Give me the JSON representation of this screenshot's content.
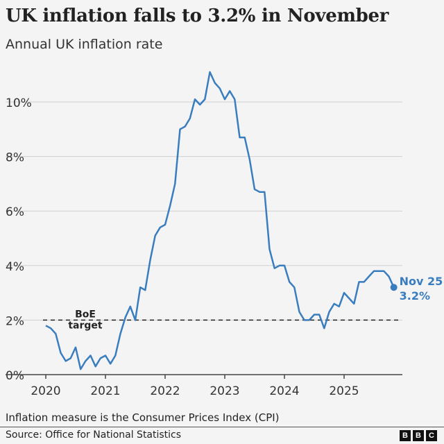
{
  "header": {
    "title": "UK inflation falls to 3.2% in November",
    "subtitle": "Annual UK inflation rate"
  },
  "chart_data": {
    "type": "line",
    "title": "UK inflation falls to 3.2% in November",
    "subtitle": "Annual UK inflation rate",
    "x_start": "2020-01",
    "x_end": "2025-11",
    "frequency": "monthly",
    "x_ticks": [
      "2020",
      "2021",
      "2022",
      "2023",
      "2024",
      "2025"
    ],
    "y_ticks": [
      "0%",
      "2%",
      "4%",
      "6%",
      "8%",
      "10%"
    ],
    "ylim": [
      0,
      11.5
    ],
    "grid": "horizontal",
    "line_color": "#3a7dbf",
    "values": [
      1.8,
      1.7,
      1.5,
      0.8,
      0.5,
      0.6,
      1.0,
      0.2,
      0.5,
      0.7,
      0.3,
      0.6,
      0.7,
      0.4,
      0.7,
      1.5,
      2.1,
      2.5,
      2.0,
      3.2,
      3.1,
      4.2,
      5.1,
      5.4,
      5.5,
      6.2,
      7.0,
      9.0,
      9.1,
      9.4,
      10.1,
      9.9,
      10.1,
      11.1,
      10.7,
      10.5,
      10.1,
      10.4,
      10.1,
      8.7,
      8.7,
      7.9,
      6.8,
      6.7,
      6.7,
      4.6,
      3.9,
      4.0,
      4.0,
      3.4,
      3.2,
      2.3,
      2.0,
      2.0,
      2.2,
      2.2,
      1.7,
      2.3,
      2.6,
      2.5,
      3.0,
      2.8,
      2.6,
      3.4,
      3.4,
      3.6,
      3.8,
      3.8,
      3.8,
      3.6,
      3.2
    ],
    "reference_line": {
      "value": 2,
      "label_line1": "BoE",
      "label_line2": "target",
      "style": "dashed"
    },
    "end_label": {
      "line1": "Nov 25",
      "line2": "3.2%"
    }
  },
  "footer": {
    "note": "Inflation measure is the Consumer Prices Index (CPI)",
    "source": "Source: Office for National Statistics",
    "logo": [
      "B",
      "B",
      "C"
    ]
  }
}
